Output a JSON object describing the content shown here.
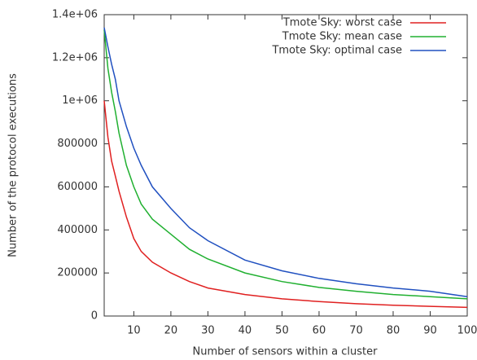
{
  "chart_data": {
    "type": "line",
    "xlabel": "Number of sensors within a cluster",
    "ylabel": "Number of the protocol executions",
    "x": [
      2,
      3,
      4,
      5,
      6,
      8,
      10,
      12,
      15,
      20,
      25,
      30,
      40,
      50,
      60,
      70,
      80,
      90,
      100
    ],
    "series": [
      {
        "name": "Tmote Sky: worst case",
        "color": "#e02020",
        "values": [
          1000000,
          830000,
          720000,
          650000,
          580000,
          460000,
          360000,
          300000,
          250000,
          200000,
          160000,
          130000,
          100000,
          80000,
          67000,
          57000,
          50000,
          45000,
          40000
        ]
      },
      {
        "name": "Tmote Sky: mean case",
        "color": "#20b030",
        "values": [
          1330000,
          1150000,
          1040000,
          950000,
          850000,
          700000,
          600000,
          520000,
          450000,
          380000,
          310000,
          265000,
          200000,
          160000,
          133000,
          115000,
          100000,
          90000,
          80000
        ]
      },
      {
        "name": "Tmote Sky: optimal case",
        "color": "#2050c0",
        "values": [
          1340000,
          1250000,
          1170000,
          1100000,
          1000000,
          880000,
          780000,
          700000,
          600000,
          500000,
          410000,
          350000,
          260000,
          210000,
          175000,
          150000,
          130000,
          115000,
          90000
        ]
      }
    ],
    "xlim": [
      2,
      100
    ],
    "xticks": [
      10,
      20,
      30,
      40,
      50,
      60,
      70,
      80,
      90,
      100
    ],
    "ylim": [
      0,
      1400000
    ],
    "yticks": [
      0,
      200000,
      400000,
      600000,
      800000,
      {
        "value": 1000000,
        "label": "1e+06"
      },
      {
        "value": 1200000,
        "label": "1.2e+06"
      },
      {
        "value": 1400000,
        "label": "1.4e+06"
      }
    ],
    "legend": "top-right",
    "grid": false
  }
}
